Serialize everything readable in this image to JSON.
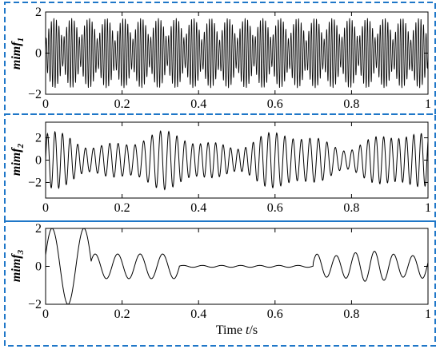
{
  "chart_data": [
    {
      "type": "line",
      "ylabel_base": "mimf",
      "ylabel_sub": "1",
      "xlabel": "",
      "xlim": [
        0,
        1
      ],
      "ylim": [
        -2,
        2
      ],
      "x_ticks": [
        "0",
        "0.2",
        "0.4",
        "0.6",
        "0.8",
        "1"
      ],
      "y_ticks": [
        "2",
        "0",
        "−2"
      ],
      "y_tick_values": [
        2,
        0,
        -2
      ],
      "series_description": "high-frequency oscillation, amplitude-modulated into ~22 beats, peak amplitude about 1.7",
      "signal": {
        "carrier_hz": 150,
        "envelope_hz": 22,
        "amplitude": 1.7
      }
    },
    {
      "type": "line",
      "ylabel_base": "mimf",
      "ylabel_sub": "2",
      "xlabel": "",
      "xlim": [
        0,
        1
      ],
      "ylim": [
        -3.4,
        3.4
      ],
      "x_ticks": [
        "0",
        "0.2",
        "0.4",
        "0.6",
        "0.8",
        "1"
      ],
      "y_ticks": [
        "2",
        "0",
        "−2"
      ],
      "y_tick_values": [
        2,
        0,
        -2
      ],
      "series_description": "mid-frequency oscillation with beating, amplitude about 2 to 3.2",
      "signal": {
        "carrier_hz": 48,
        "beat_hz": 3.2,
        "amplitude": 2.3
      }
    },
    {
      "type": "line",
      "ylabel_base": "mimf",
      "ylabel_sub": "3",
      "xlabel": "Time t/s",
      "xlabel_parts": [
        "Time ",
        "t",
        "/s"
      ],
      "xlim": [
        0,
        1
      ],
      "ylim": [
        -2,
        2
      ],
      "x_ticks": [
        "0",
        "0.2",
        "0.4",
        "0.6",
        "0.8",
        "1"
      ],
      "y_ticks": [
        "2",
        "0",
        "−2"
      ],
      "y_tick_values": [
        2,
        0,
        -2
      ],
      "series_description": "low-frequency oscillation: large (~2) near t=0, decays to ~0.6 by t=0.3, near zero 0.35–0.7, grows again to ~0.8 after t=0.7",
      "signal": {
        "carrier_hz": 20,
        "amplitude_start": 2.0,
        "amplitude_mid": 0.05,
        "amplitude_end": 0.8
      }
    }
  ],
  "colors": {
    "frame_dash": "#1f77c8",
    "trace": "#000000",
    "axes": "#000000"
  }
}
